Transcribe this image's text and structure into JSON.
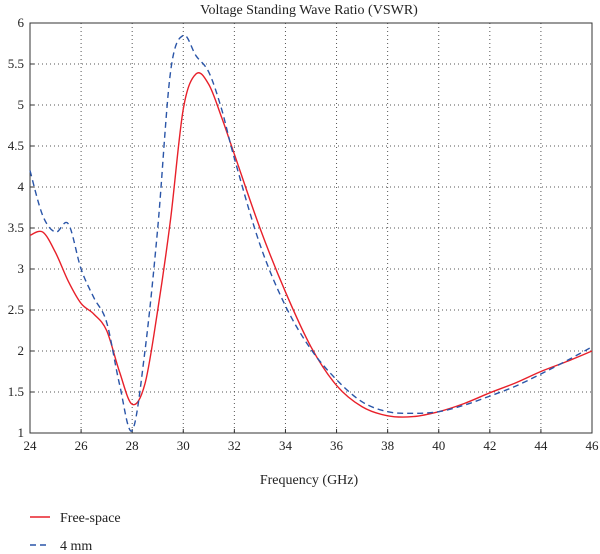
{
  "chart_data": {
    "type": "line",
    "title": "Voltage Standing Wave Ratio (VSWR)",
    "xlabel": "Frequency (GHz)",
    "ylabel": "",
    "xlim": [
      24,
      46
    ],
    "ylim": [
      1,
      6
    ],
    "x_ticks": [
      24,
      26,
      28,
      30,
      32,
      34,
      36,
      38,
      40,
      42,
      44,
      46
    ],
    "y_ticks": [
      1,
      1.5,
      2,
      2.5,
      3,
      3.5,
      4,
      4.5,
      5,
      5.5,
      6
    ],
    "grid": true,
    "legend_position": "bottom-left",
    "series": [
      {
        "name": "Free-space",
        "color": "#e8202a",
        "style": "solid",
        "points": [
          [
            24,
            3.41
          ],
          [
            24.5,
            3.45
          ],
          [
            25,
            3.2
          ],
          [
            25.5,
            2.85
          ],
          [
            26,
            2.58
          ],
          [
            26.5,
            2.45
          ],
          [
            27,
            2.25
          ],
          [
            27.5,
            1.75
          ],
          [
            28,
            1.35
          ],
          [
            28.5,
            1.6
          ],
          [
            29,
            2.5
          ],
          [
            29.5,
            3.6
          ],
          [
            30,
            4.95
          ],
          [
            30.5,
            5.38
          ],
          [
            31,
            5.25
          ],
          [
            31.5,
            4.85
          ],
          [
            32,
            4.4
          ],
          [
            33,
            3.5
          ],
          [
            34,
            2.72
          ],
          [
            35,
            2.05
          ],
          [
            36,
            1.58
          ],
          [
            37,
            1.32
          ],
          [
            38,
            1.21
          ],
          [
            39,
            1.2
          ],
          [
            40,
            1.26
          ],
          [
            41,
            1.36
          ],
          [
            42,
            1.49
          ],
          [
            43,
            1.61
          ],
          [
            44,
            1.75
          ],
          [
            45,
            1.87
          ],
          [
            46,
            2.0
          ]
        ]
      },
      {
        "name": "4 mm",
        "color": "#2a55a8",
        "style": "dashed",
        "points": [
          [
            24,
            4.2
          ],
          [
            24.5,
            3.65
          ],
          [
            25,
            3.45
          ],
          [
            25.5,
            3.55
          ],
          [
            26,
            3.0
          ],
          [
            26.5,
            2.65
          ],
          [
            27,
            2.35
          ],
          [
            27.5,
            1.6
          ],
          [
            28,
            1.03
          ],
          [
            28.5,
            2.0
          ],
          [
            29,
            3.5
          ],
          [
            29.5,
            5.4
          ],
          [
            30,
            5.85
          ],
          [
            30.5,
            5.6
          ],
          [
            31,
            5.4
          ],
          [
            31.5,
            4.95
          ],
          [
            32,
            4.35
          ],
          [
            33,
            3.3
          ],
          [
            34,
            2.55
          ],
          [
            35,
            2.02
          ],
          [
            36,
            1.65
          ],
          [
            37,
            1.38
          ],
          [
            38,
            1.26
          ],
          [
            39,
            1.24
          ],
          [
            40,
            1.26
          ],
          [
            41,
            1.34
          ],
          [
            42,
            1.45
          ],
          [
            43,
            1.57
          ],
          [
            44,
            1.72
          ],
          [
            45,
            1.88
          ],
          [
            46,
            2.05
          ]
        ]
      }
    ]
  }
}
